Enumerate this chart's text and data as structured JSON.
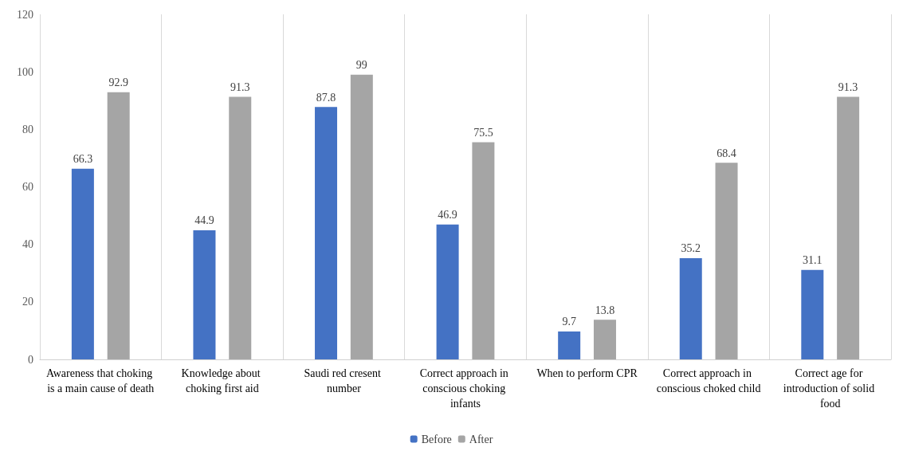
{
  "chart_data": {
    "type": "bar",
    "categories": [
      "Awareness that choking is a main cause of death",
      "Knowledge about choking first aid",
      "Saudi red cresent number",
      "Correct approach in conscious choking infants",
      "When to perform CPR",
      "Correct approach in conscious choked child",
      "Correct age for introduction of solid food"
    ],
    "series": [
      {
        "name": "Before",
        "color": "#4472c4",
        "values": [
          66.3,
          44.9,
          87.8,
          46.9,
          9.7,
          35.2,
          31.1
        ]
      },
      {
        "name": "After",
        "color": "#a5a5a5",
        "values": [
          92.9,
          91.3,
          99,
          75.5,
          13.8,
          68.4,
          91.3
        ]
      }
    ],
    "ylim": [
      0,
      120
    ],
    "yticks": [
      0,
      20,
      40,
      60,
      80,
      100,
      120
    ],
    "grid": "x",
    "legend": "bottom",
    "data_labels": true
  }
}
